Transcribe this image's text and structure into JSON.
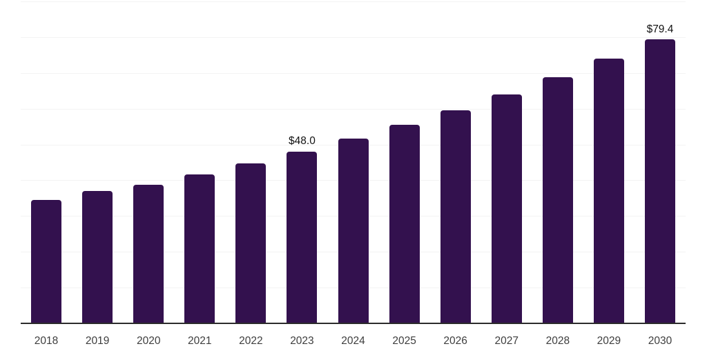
{
  "chart_data": {
    "type": "bar",
    "title": "",
    "categories": [
      "2018",
      "2019",
      "2020",
      "2021",
      "2022",
      "2023",
      "2024",
      "2025",
      "2026",
      "2027",
      "2028",
      "2029",
      "2030"
    ],
    "values": [
      34.5,
      37.0,
      38.7,
      41.7,
      44.7,
      48.0,
      51.7,
      55.5,
      59.6,
      64.0,
      68.8,
      74.0,
      79.4
    ],
    "value_labels": [
      "",
      "",
      "",
      "",
      "",
      "$48.0",
      "",
      "",
      "",
      "",
      "",
      "",
      "$79.4"
    ],
    "xlabel": "",
    "ylabel": "",
    "ylim": [
      0,
      90
    ],
    "gridline_step": 10,
    "grid": "horizontal",
    "legend": "none",
    "colors": {
      "bar": "#33114e",
      "gridline": "#f3f3f3",
      "axis_line": "#2b2b2b",
      "tick_label": "#3d3d3d",
      "value_label": "#111111",
      "background": "#ffffff"
    }
  }
}
